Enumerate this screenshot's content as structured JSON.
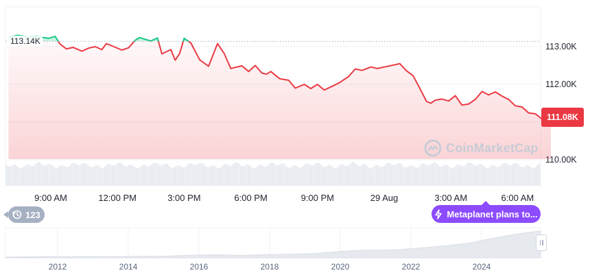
{
  "chart_data": {
    "type": "line",
    "title": "",
    "xlabel": "",
    "ylabel": "",
    "ylim": [
      109350,
      113900
    ],
    "y_ticks": [
      {
        "value": 113000,
        "label": "113.00K"
      },
      {
        "value": 112000,
        "label": "112.00K"
      },
      {
        "value": 111000,
        "label": "111.00K"
      },
      {
        "value": 110000,
        "label": "110.00K"
      }
    ],
    "x_ticks": [
      "9:00 AM",
      "12:00 PM",
      "3:00 PM",
      "6:00 PM",
      "9:00 PM",
      "29 Aug",
      "3:00 AM",
      "6:00 AM"
    ],
    "reference_value": 113140,
    "reference_label": "113.14K",
    "current_value": 111080,
    "current_label": "111.08K",
    "above_color": "#16c784",
    "below_color": "#ea3943",
    "x_hours": [
      7.1,
      7.5,
      8.0,
      8.4,
      8.6,
      8.9,
      9.2,
      9.4,
      9.7,
      10.0,
      10.4,
      10.7,
      11.0,
      11.3,
      11.5,
      11.8,
      12.2,
      12.5,
      12.8,
      13.0,
      13.5,
      13.8,
      14.0,
      14.4,
      14.6,
      14.8,
      15.0,
      15.3,
      15.7,
      16.1,
      16.5,
      16.8,
      17.1,
      17.3,
      17.6,
      17.9,
      18.2,
      18.5,
      18.7,
      18.9,
      19.3,
      19.7,
      20.0,
      20.4,
      20.7,
      21.0,
      21.3,
      21.7,
      22.0,
      22.4,
      22.7,
      23.0,
      23.4,
      23.7,
      24.0,
      24.4,
      24.7,
      25.0,
      25.3,
      25.6,
      25.9,
      26.1,
      26.3,
      26.6,
      26.9,
      27.2,
      27.5,
      27.8,
      28.1,
      28.4,
      28.7,
      29.0,
      29.3,
      29.6,
      29.9,
      30.2,
      30.5,
      30.8,
      31.1,
      31.4,
      31.5
    ],
    "y_values": [
      113250,
      113300,
      113260,
      113280,
      113250,
      113220,
      113270,
      113080,
      112940,
      112980,
      112880,
      112960,
      113000,
      112920,
      113080,
      113010,
      112910,
      112970,
      113170,
      113240,
      113150,
      113230,
      112810,
      112920,
      112640,
      112820,
      113220,
      113100,
      112650,
      112480,
      113080,
      112820,
      112420,
      112450,
      112490,
      112340,
      112500,
      112300,
      112270,
      112340,
      112150,
      112110,
      111900,
      112000,
      111890,
      112000,
      111850,
      111960,
      112050,
      112210,
      112410,
      112370,
      112460,
      112420,
      112460,
      112510,
      112550,
      112360,
      112230,
      111900,
      111550,
      111500,
      111580,
      111610,
      111560,
      111700,
      111450,
      111480,
      111600,
      111810,
      111720,
      111800,
      111690,
      111600,
      111430,
      111400,
      111240,
      111220,
      111080,
      111250,
      111080
    ],
    "volume_label": "",
    "navigator_x_ticks": [
      "2012",
      "2014",
      "2016",
      "2018",
      "2020",
      "2022",
      "2024"
    ]
  },
  "history": {
    "count": "123",
    "icon": "history-icon"
  },
  "news": {
    "label": "Metaplanet plans to...",
    "icon": "lightning-icon"
  },
  "watermark": {
    "text": "CoinMarketCap",
    "icon": "cmc-logo-icon"
  }
}
